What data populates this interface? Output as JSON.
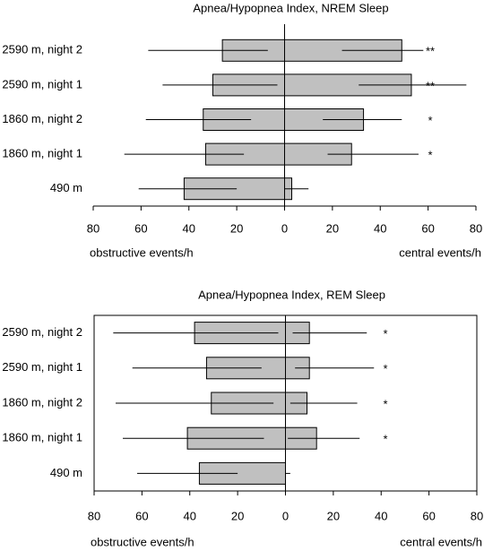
{
  "chart_data": [
    {
      "type": "bar",
      "orientation": "horizontal",
      "title": "Apnea/Hypopnea Index, NREM Sleep",
      "x_label_left": "obstructive events/h",
      "x_label_right": "central events/h",
      "categories": [
        "2590 m, night 2",
        "2590 m, night 1",
        "1860 m, night 2",
        "1860 m, night 1",
        "490 m"
      ],
      "series": [
        {
          "color": "#c0c0c0",
          "values": [
            -26,
            -30,
            -34,
            -33,
            -42
          ],
          "range_low": [
            -57,
            -51,
            -58,
            -67,
            -61
          ],
          "range_high": [
            -7,
            -3,
            -14,
            -17,
            -20
          ]
        },
        {
          "color": "#c0c0c0",
          "values": [
            49,
            53,
            33,
            28,
            3
          ],
          "range_low": [
            24,
            31,
            16,
            18,
            0
          ],
          "range_high": [
            58,
            76,
            49,
            56,
            10
          ]
        }
      ],
      "annotations": [
        "**",
        "**",
        "*",
        "*",
        null
      ],
      "xlim": [
        -80,
        80
      ],
      "xticks": [
        {
          "value": -80,
          "label": "80"
        },
        {
          "value": -60,
          "label": "60"
        },
        {
          "value": -40,
          "label": "40"
        },
        {
          "value": -20,
          "label": "20"
        },
        0,
        20,
        40,
        60,
        80
      ],
      "frame": false
    },
    {
      "type": "bar",
      "orientation": "horizontal",
      "title": "Apnea/Hypopnea Index, REM Sleep",
      "x_label_left": "obstructive events/h",
      "x_label_right": "central events/h",
      "categories": [
        "2590 m, night 2",
        "2590 m, night 1",
        "1860 m, night 2",
        "1860 m, night 1",
        "490 m"
      ],
      "series": [
        {
          "color": "#c0c0c0",
          "values": [
            -38,
            -33,
            -31,
            -41,
            -36
          ],
          "range_low": [
            -72,
            -64,
            -71,
            -68,
            -62
          ],
          "range_high": [
            -3,
            -10,
            -5,
            -9,
            -20
          ]
        },
        {
          "color": "#c0c0c0",
          "values": [
            10,
            10,
            9,
            13,
            0
          ],
          "range_low": [
            3,
            4,
            2,
            1,
            0
          ],
          "range_high": [
            34,
            37,
            30,
            31,
            2
          ]
        }
      ],
      "annotations": [
        "*",
        "*",
        "*",
        "*",
        null
      ],
      "xlim": [
        -80,
        80
      ],
      "xticks": [
        {
          "value": -80,
          "label": "80"
        },
        {
          "value": -60,
          "label": "60"
        },
        {
          "value": -40,
          "label": "40"
        },
        {
          "value": -20,
          "label": "20"
        },
        0,
        20,
        40,
        60,
        80
      ],
      "frame": true
    }
  ]
}
